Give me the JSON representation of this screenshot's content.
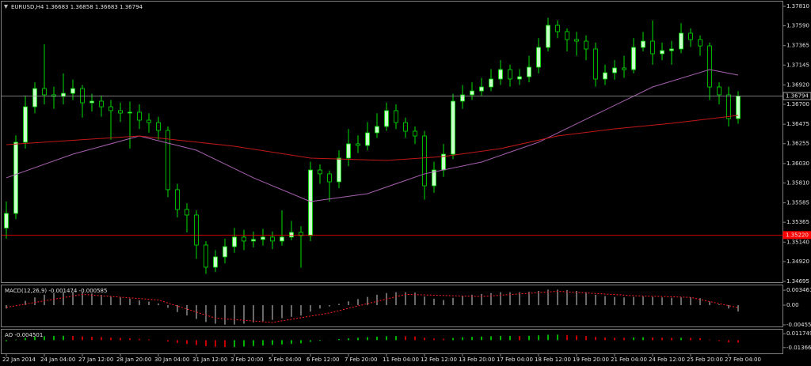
{
  "chart_data": [
    {
      "type": "candlestick",
      "title": "EURUSD,H4 1.36683 1.36858 1.36683 1.36794",
      "categories": [
        "22 Jan 2014",
        null,
        null,
        null,
        "24 Jan 04:00",
        null,
        null,
        null,
        "27 Jan 12:00",
        null,
        null,
        null,
        "28 Jan 20:00",
        null,
        null,
        null,
        "30 Jan 04:00",
        null,
        null,
        null,
        "31 Jan 12:00",
        null,
        null,
        null,
        "3 Feb 20:00",
        null,
        null,
        null,
        "5 Feb 04:00",
        null,
        null,
        null,
        "6 Feb 12:00",
        null,
        null,
        null,
        "7 Feb 20:00",
        null,
        null,
        null,
        "11 Feb 04:00",
        null,
        null,
        null,
        "12 Feb 12:00",
        null,
        null,
        null,
        "13 Feb 20:00",
        null,
        null,
        null,
        "17 Feb 04:00",
        null,
        null,
        null,
        "18 Feb 12:00",
        null,
        null,
        null,
        "19 Feb 20:00",
        null,
        null,
        null,
        "21 Feb 04:00",
        null,
        null,
        null,
        "24 Feb 12:00",
        null,
        null,
        null,
        "25 Feb 20:00",
        null,
        null,
        null,
        "27 Feb 04:00",
        null
      ],
      "open": [
        1.353,
        1.35465,
        1.36271,
        1.36673,
        1.36879,
        1.36808,
        1.3679,
        1.36825,
        1.36879,
        1.36718,
        1.36736,
        1.36673,
        1.36629,
        1.36602,
        1.36611,
        1.36521,
        1.36494,
        1.36405,
        1.35734,
        1.3551,
        1.35447,
        1.35107,
        1.34856,
        1.34973,
        1.35089,
        1.35197,
        1.35152,
        1.3517,
        1.35197,
        1.35152,
        1.35197,
        1.3525,
        1.35214,
        1.35957,
        1.35913,
        1.35823,
        1.36092,
        1.36253,
        1.36235,
        1.36378,
        1.3645,
        1.36629,
        1.36494,
        1.36396,
        1.36342,
        1.35778,
        1.35957,
        1.36136,
        1.36736,
        1.36808,
        1.36852,
        1.36897,
        1.36987,
        1.37094,
        1.36987,
        1.37013,
        1.37121,
        1.37345,
        1.37595,
        1.37524,
        1.37434,
        1.37416,
        1.37327,
        1.36987,
        1.37058,
        1.37112,
        1.37094,
        1.37345,
        1.37416,
        1.37273,
        1.37309,
        1.37327,
        1.37506,
        1.37434,
        1.37362,
        1.36897,
        1.36808,
        1.36539
      ],
      "high": [
        1.356,
        1.3635,
        1.368,
        1.3695,
        1.3738,
        1.369,
        1.3705,
        1.3698,
        1.3692,
        1.3682,
        1.368,
        1.3675,
        1.3672,
        1.3673,
        1.367,
        1.366,
        1.3656,
        1.3645,
        1.358,
        1.3558,
        1.355,
        1.3515,
        1.3505,
        1.3518,
        1.353,
        1.3528,
        1.3526,
        1.3529,
        1.3526,
        1.355,
        1.3538,
        1.3532,
        1.3605,
        1.3602,
        1.3595,
        1.3618,
        1.3642,
        1.3635,
        1.365,
        1.366,
        1.3672,
        1.367,
        1.3655,
        1.3645,
        1.364,
        1.3605,
        1.3625,
        1.3682,
        1.3692,
        1.3695,
        1.37,
        1.371,
        1.372,
        1.3715,
        1.371,
        1.3725,
        1.3745,
        1.3768,
        1.3765,
        1.3756,
        1.3752,
        1.3748,
        1.374,
        1.3715,
        1.372,
        1.3725,
        1.3745,
        1.3752,
        1.3765,
        1.374,
        1.3742,
        1.3762,
        1.3756,
        1.3748,
        1.374,
        1.3695,
        1.369,
        1.3685
      ],
      "low": [
        1.3518,
        1.354,
        1.362,
        1.366,
        1.367,
        1.3665,
        1.367,
        1.3675,
        1.3655,
        1.3662,
        1.3656,
        1.363,
        1.365,
        1.362,
        1.3642,
        1.3638,
        1.363,
        1.3565,
        1.3542,
        1.3525,
        1.3495,
        1.3478,
        1.348,
        1.349,
        1.3502,
        1.3505,
        1.3508,
        1.351,
        1.3506,
        1.351,
        1.3516,
        1.3485,
        1.3515,
        1.358,
        1.356,
        1.3575,
        1.36,
        1.3615,
        1.3618,
        1.3632,
        1.364,
        1.3642,
        1.3632,
        1.3625,
        1.3562,
        1.357,
        1.3588,
        1.3608,
        1.3665,
        1.3675,
        1.368,
        1.3685,
        1.3692,
        1.369,
        1.3692,
        1.3695,
        1.3705,
        1.373,
        1.3745,
        1.373,
        1.3725,
        1.372,
        1.369,
        1.3692,
        1.3698,
        1.37,
        1.3705,
        1.373,
        1.3715,
        1.372,
        1.3715,
        1.3728,
        1.3735,
        1.3725,
        1.3675,
        1.367,
        1.3645,
        1.3648
      ],
      "close": [
        1.35465,
        1.36271,
        1.36673,
        1.36879,
        1.36808,
        1.3679,
        1.36825,
        1.36879,
        1.36718,
        1.36736,
        1.36673,
        1.36629,
        1.36602,
        1.36611,
        1.36521,
        1.36494,
        1.36405,
        1.35734,
        1.3551,
        1.35447,
        1.35107,
        1.34856,
        1.34973,
        1.35089,
        1.35197,
        1.35152,
        1.3517,
        1.35197,
        1.35152,
        1.35197,
        1.3525,
        1.35214,
        1.35957,
        1.35913,
        1.35823,
        1.36092,
        1.36253,
        1.36235,
        1.36378,
        1.3645,
        1.36629,
        1.36494,
        1.36396,
        1.36342,
        1.35778,
        1.35957,
        1.36136,
        1.36736,
        1.36808,
        1.36852,
        1.36897,
        1.36987,
        1.37094,
        1.36987,
        1.37013,
        1.37121,
        1.37345,
        1.37595,
        1.37524,
        1.37434,
        1.37416,
        1.37327,
        1.36987,
        1.37058,
        1.37112,
        1.37094,
        1.37345,
        1.37416,
        1.37273,
        1.37309,
        1.37327,
        1.37506,
        1.37434,
        1.37362,
        1.36897,
        1.36808,
        1.36539,
        1.36794
      ],
      "up_color": "#c8ffc8",
      "down_color": "#000000",
      "wick_color": "#00e000",
      "series": [
        {
          "color": "#a860b0",
          "x": [
            0,
            7,
            14,
            20,
            26,
            32,
            38,
            44,
            50,
            56,
            62,
            68,
            74,
            77
          ],
          "values": [
            1.35868,
            1.36136,
            1.36342,
            1.36181,
            1.35868,
            1.35599,
            1.35689,
            1.35913,
            1.36047,
            1.36271,
            1.36584,
            1.36897,
            1.37094,
            1.37031
          ]
        },
        {
          "color": "#c01818",
          "x": [
            0,
            14,
            24,
            32,
            40,
            46,
            52,
            58,
            64,
            70,
            77
          ],
          "values": [
            1.36244,
            1.36342,
            1.36226,
            1.36092,
            1.36065,
            1.36109,
            1.36199,
            1.36342,
            1.36423,
            1.36485,
            1.36575
          ]
        }
      ],
      "hlines": [
        {
          "value": 1.3522,
          "label": "1.35220",
          "color": "#ff0000"
        },
        {
          "value": 1.36794,
          "label": "1.36794",
          "color": "#a0a0a0"
        }
      ],
      "ylim": [
        1.34686,
        1.37864
      ],
      "yticks": [
        {
          "value": 1.34695,
          "label": "1.34695"
        },
        {
          "value": 1.3492,
          "label": "1.34920"
        },
        {
          "value": 1.3514,
          "label": "1.35140"
        },
        {
          "value": 1.35365,
          "label": "1.35365"
        },
        {
          "value": 1.35585,
          "label": "1.35585"
        },
        {
          "value": 1.3581,
          "label": "1.35810"
        },
        {
          "value": 1.3603,
          "label": "1.36030"
        },
        {
          "value": 1.36255,
          "label": "1.36255"
        },
        {
          "value": 1.36475,
          "label": "1.36475"
        },
        {
          "value": 1.367,
          "label": "1.36700"
        },
        {
          "value": 1.3692,
          "label": "1.36920"
        },
        {
          "value": 1.37145,
          "label": "1.37145"
        },
        {
          "value": 1.37365,
          "label": "1.37365"
        },
        {
          "value": 1.3759,
          "label": "1.37590"
        },
        {
          "value": 1.3781,
          "label": "1.37810"
        }
      ]
    },
    {
      "type": "bar",
      "title": "MACD(12,26,9) -0.001474 -0.000585",
      "color": "#d0d0d0",
      "values": [
        -0.0008,
        0,
        0.001,
        0.0018,
        0.0024,
        0.0028,
        0.003,
        0.0031,
        0.0029,
        0.0027,
        0.0024,
        0.0021,
        0.0018,
        0.0015,
        0.0011,
        0.0008,
        0.0004,
        -0.0006,
        -0.0016,
        -0.0024,
        -0.0032,
        -0.0039,
        -0.0043,
        -0.0045,
        -0.0045,
        -0.0043,
        -0.004,
        -0.0037,
        -0.0034,
        -0.003,
        -0.0027,
        -0.0024,
        -0.0015,
        -0.0008,
        -0.0003,
        0.0003,
        0.0009,
        0.0014,
        0.0019,
        0.0024,
        0.0028,
        0.003,
        0.003,
        0.0029,
        0.002,
        0.0015,
        0.0012,
        0.0017,
        0.0021,
        0.0024,
        0.0026,
        0.0028,
        0.003,
        0.003,
        0.003,
        0.0031,
        0.0033,
        0.0036,
        0.0036,
        0.0035,
        0.0033,
        0.003,
        0.0024,
        0.0021,
        0.0019,
        0.0018,
        0.0019,
        0.002,
        0.0019,
        0.0018,
        0.0017,
        0.0018,
        0.0018,
        0.0016,
        0.0008,
        0.0002,
        -0.0008,
        -0.001474
      ],
      "signal": {
        "color": "#ff2020",
        "x": [
          0,
          8,
          16,
          22,
          28,
          34,
          42,
          50,
          58,
          66,
          72,
          77
        ],
        "values": [
          -0.0005,
          0.0025,
          0.0012,
          -0.003,
          -0.004,
          -0.0018,
          0.0025,
          0.002,
          0.0032,
          0.0022,
          0.0018,
          -0.000585
        ]
      },
      "ylim": [
        -0.00493,
        0.00458
      ],
      "yticks": [
        -0.004553,
        {
          "value": 0,
          "label": "0.00"
        },
        0.003461
      ]
    },
    {
      "type": "bar",
      "title": "AO -0.004501",
      "up_color": "#00b000",
      "down_color": "#c00000",
      "values": [
        -0.002,
        0.001,
        0.004,
        0.006,
        0.0072,
        0.0078,
        0.008,
        0.0078,
        0.007,
        0.0062,
        0.0055,
        0.0046,
        0.004,
        0.0032,
        0.0022,
        0.0012,
        0.0002,
        -0.0025,
        -0.005,
        -0.007,
        -0.009,
        -0.011,
        -0.0122,
        -0.0128,
        -0.0126,
        -0.0118,
        -0.0108,
        -0.0098,
        -0.0088,
        -0.0078,
        -0.0068,
        -0.0058,
        -0.003,
        -0.0012,
        0.0002,
        0.0018,
        0.0032,
        0.0044,
        0.0054,
        0.0064,
        0.0072,
        0.0076,
        0.0074,
        0.0068,
        0.0045,
        0.003,
        0.0025,
        0.004,
        0.0052,
        0.006,
        0.0066,
        0.0072,
        0.0078,
        0.0078,
        0.0076,
        0.008,
        0.0088,
        0.0098,
        0.01,
        0.0094,
        0.0086,
        0.0076,
        0.0058,
        0.0048,
        0.0044,
        0.0042,
        0.0048,
        0.0052,
        0.0048,
        0.0044,
        0.004,
        0.0044,
        0.0042,
        0.0036,
        0.001,
        -0.0015,
        -0.004,
        -0.004501
      ],
      "ylim": [
        -0.0241,
        0.0192
      ],
      "yticks": [
        -0.013665,
        0.011749
      ]
    }
  ]
}
